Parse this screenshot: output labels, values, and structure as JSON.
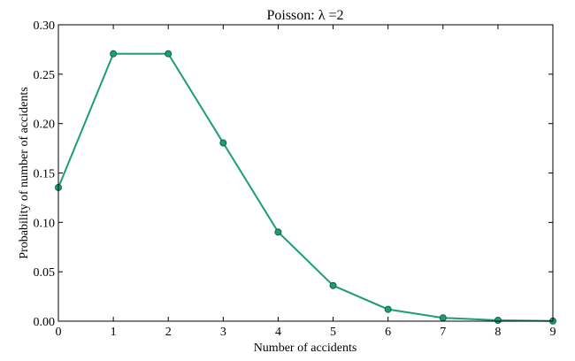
{
  "chart_data": {
    "type": "line",
    "title": "Poisson: λ =2",
    "xlabel": "Number of accidents",
    "ylabel": "Probability of number of accidents",
    "x": [
      0,
      1,
      2,
      3,
      4,
      5,
      6,
      7,
      8,
      9
    ],
    "y": [
      0.1353,
      0.2707,
      0.2707,
      0.1804,
      0.0902,
      0.0361,
      0.012,
      0.0034,
      0.0009,
      0.0002
    ],
    "xlim": [
      0,
      9
    ],
    "ylim": [
      0,
      0.3
    ],
    "xticks": [
      "0",
      "1",
      "2",
      "3",
      "4",
      "5",
      "6",
      "7",
      "8",
      "9"
    ],
    "yticks": [
      "0.00",
      "0.05",
      "0.10",
      "0.15",
      "0.20",
      "0.25",
      "0.30"
    ],
    "grid": false,
    "marker": "circle",
    "color": "#1b9e77",
    "marker_edge_color": "#14614a"
  }
}
